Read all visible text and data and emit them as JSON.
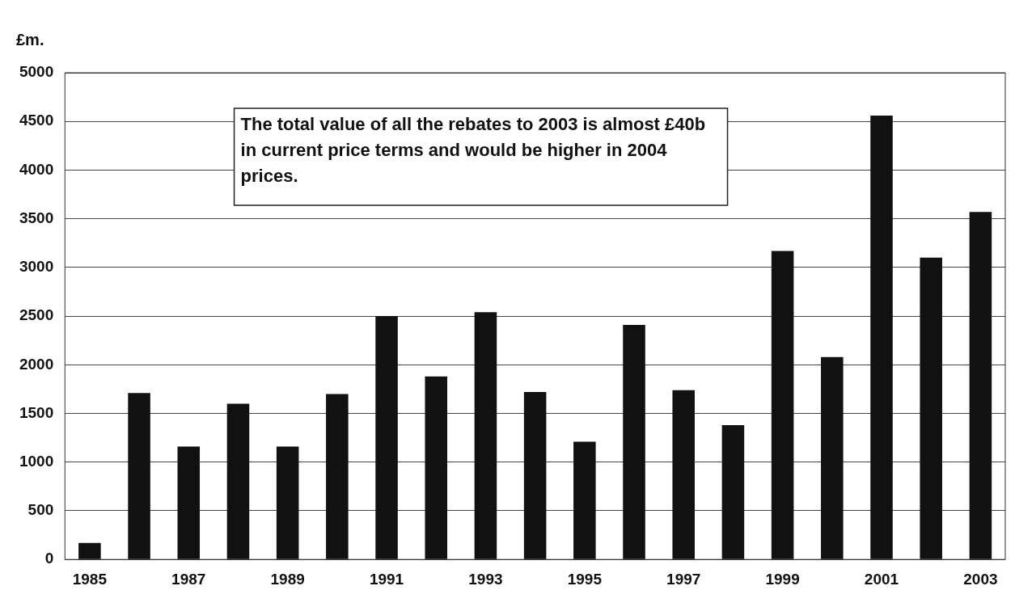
{
  "chart_data": {
    "type": "bar",
    "ylabel": "£m.",
    "categories": [
      "1985",
      null,
      "1987",
      null,
      "1989",
      null,
      "1991",
      null,
      "1993",
      null,
      "1995",
      null,
      "1997",
      null,
      "1999",
      null,
      "2001",
      null,
      "2003"
    ],
    "values": [
      170,
      1710,
      1160,
      1600,
      1160,
      1700,
      2500,
      1880,
      2540,
      1720,
      1210,
      2410,
      1740,
      1380,
      3170,
      2080,
      4560,
      3100,
      3570
    ],
    "color": "#111111",
    "ylim": [
      0,
      5000
    ],
    "yticks": [
      0,
      500,
      1000,
      1500,
      2000,
      2500,
      3000,
      3500,
      4000,
      4500,
      5000
    ],
    "grid": "y",
    "legend": false,
    "annotations": [
      "The total value of all the rebates to 2003 is almost £40b in current price terms and would be higher in 2004 prices."
    ]
  }
}
